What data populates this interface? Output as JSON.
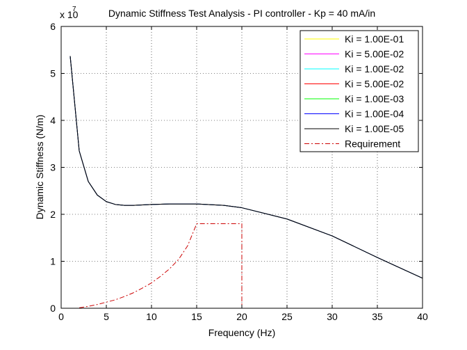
{
  "chart_data": {
    "type": "line",
    "title": "Dynamic Stiffness Test Analysis - PI controller - Kp = 40 mA/in",
    "xlabel": "Frequency (Hz)",
    "ylabel": "Dynamic Stiffness (N/m)",
    "y_scale_base": "x 10",
    "y_scale_exponent": "7",
    "xlim": [
      0,
      40
    ],
    "ylim": [
      0,
      6
    ],
    "x_ticks": [
      0,
      5,
      10,
      15,
      20,
      25,
      30,
      35,
      40
    ],
    "y_ticks": [
      0,
      1,
      2,
      3,
      4,
      5,
      6
    ],
    "x_tick_labels": [
      "0",
      "5",
      "10",
      "15",
      "20",
      "25",
      "30",
      "35",
      "40"
    ],
    "y_tick_labels": [
      "0",
      "1",
      "2",
      "3",
      "4",
      "5",
      "6"
    ],
    "grid": true,
    "legend_position": "top-right",
    "series": [
      {
        "name": "Ki = 1.00E-01",
        "color": "#ffff00",
        "style": "solid",
        "x": [
          1,
          2,
          3,
          4,
          5,
          6,
          7,
          8,
          10,
          12,
          15,
          18,
          20,
          25,
          30,
          35,
          40
        ],
        "y": [
          5.37,
          3.35,
          2.7,
          2.41,
          2.27,
          2.21,
          2.19,
          2.19,
          2.21,
          2.22,
          2.22,
          2.19,
          2.14,
          1.9,
          1.54,
          1.08,
          0.64
        ]
      },
      {
        "name": "Ki = 5.00E-02",
        "color": "#ff00ff",
        "style": "solid",
        "x": [
          1,
          2,
          3,
          4,
          5,
          6,
          7,
          8,
          10,
          12,
          15,
          18,
          20,
          25,
          30,
          35,
          40
        ],
        "y": [
          5.37,
          3.35,
          2.7,
          2.41,
          2.27,
          2.21,
          2.19,
          2.19,
          2.21,
          2.22,
          2.22,
          2.19,
          2.14,
          1.9,
          1.54,
          1.08,
          0.64
        ]
      },
      {
        "name": "Ki = 1.00E-02",
        "color": "#00ffff",
        "style": "solid",
        "x": [
          1,
          2,
          3,
          4,
          5,
          6,
          7,
          8,
          10,
          12,
          15,
          18,
          20,
          25,
          30,
          35,
          40
        ],
        "y": [
          5.37,
          3.35,
          2.7,
          2.41,
          2.27,
          2.21,
          2.19,
          2.19,
          2.21,
          2.22,
          2.22,
          2.19,
          2.14,
          1.9,
          1.54,
          1.08,
          0.64
        ]
      },
      {
        "name": "Ki = 5.00E-02",
        "color": "#ff0000",
        "style": "solid",
        "x": [
          1,
          2,
          3,
          4,
          5,
          6,
          7,
          8,
          10,
          12,
          15,
          18,
          20,
          25,
          30,
          35,
          40
        ],
        "y": [
          5.37,
          3.35,
          2.7,
          2.41,
          2.27,
          2.21,
          2.19,
          2.19,
          2.21,
          2.22,
          2.22,
          2.19,
          2.14,
          1.9,
          1.54,
          1.08,
          0.64
        ]
      },
      {
        "name": "Ki = 1.00E-03",
        "color": "#00ff00",
        "style": "solid",
        "x": [
          1,
          2,
          3,
          4,
          5,
          6,
          7,
          8,
          10,
          12,
          15,
          18,
          20,
          25,
          30,
          35,
          40
        ],
        "y": [
          5.37,
          3.35,
          2.7,
          2.41,
          2.27,
          2.21,
          2.19,
          2.19,
          2.21,
          2.22,
          2.22,
          2.19,
          2.14,
          1.9,
          1.54,
          1.08,
          0.64
        ]
      },
      {
        "name": "Ki = 1.00E-04",
        "color": "#0000ff",
        "style": "solid",
        "x": [
          1,
          2,
          3,
          4,
          5,
          6,
          7,
          8,
          10,
          12,
          15,
          18,
          20,
          25,
          30,
          35,
          40
        ],
        "y": [
          5.37,
          3.35,
          2.7,
          2.41,
          2.27,
          2.21,
          2.19,
          2.19,
          2.21,
          2.22,
          2.22,
          2.19,
          2.14,
          1.9,
          1.54,
          1.08,
          0.64
        ]
      },
      {
        "name": "Ki = 1.00E-05",
        "color": "#000000",
        "style": "solid",
        "x": [
          1,
          2,
          3,
          4,
          5,
          6,
          7,
          8,
          10,
          12,
          15,
          18,
          20,
          25,
          30,
          35,
          40
        ],
        "y": [
          5.37,
          3.35,
          2.7,
          2.41,
          2.27,
          2.21,
          2.19,
          2.19,
          2.21,
          2.22,
          2.22,
          2.19,
          2.14,
          1.9,
          1.54,
          1.08,
          0.64
        ]
      },
      {
        "name": "Requirement",
        "color": "#cc0000",
        "style": "dash-dot",
        "x": [
          2,
          3,
          4,
          5,
          6,
          7,
          8,
          9,
          10,
          11,
          12,
          13,
          14,
          15,
          16,
          17,
          18,
          19,
          20,
          20
        ],
        "y": [
          0.01,
          0.04,
          0.08,
          0.13,
          0.18,
          0.25,
          0.33,
          0.43,
          0.54,
          0.68,
          0.84,
          1.04,
          1.33,
          1.8,
          1.8,
          1.8,
          1.8,
          1.8,
          1.8,
          0
        ]
      }
    ]
  }
}
